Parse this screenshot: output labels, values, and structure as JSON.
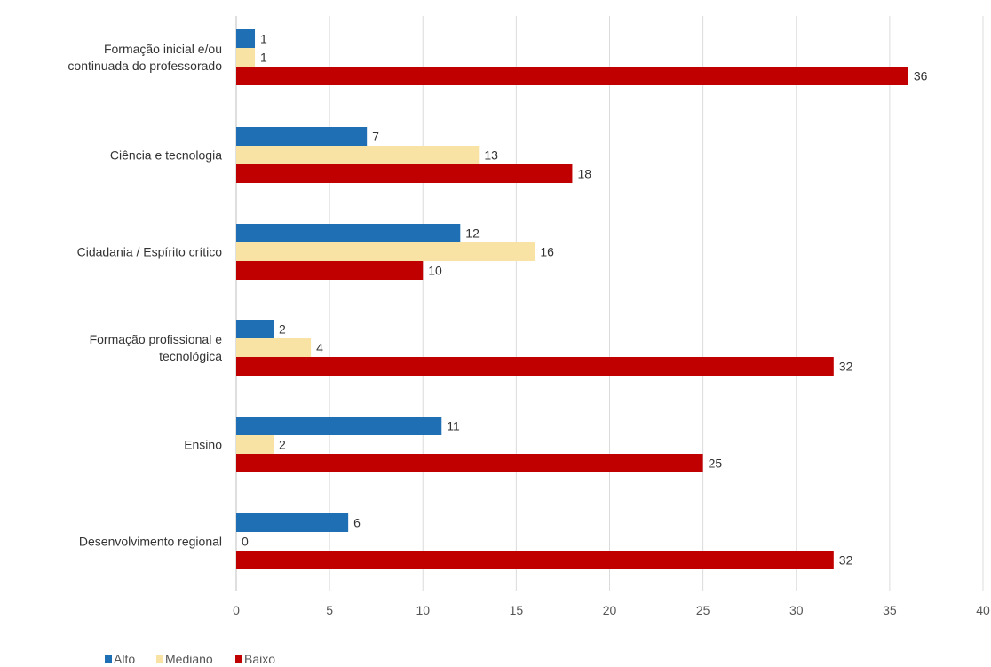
{
  "chart_data": {
    "type": "bar",
    "orientation": "horizontal",
    "categories": [
      [
        "Formação inicial e/ou",
        "continuada do professorado"
      ],
      [
        "Ciência e tecnologia"
      ],
      [
        "Cidadania / Espírito crítico"
      ],
      [
        "Formação profissional e",
        "tecnológica"
      ],
      [
        "Ensino"
      ],
      [
        "Desenvolvimento regional"
      ]
    ],
    "series": [
      {
        "name": "Alto",
        "color": "#1f6fb5",
        "values": [
          1,
          7,
          12,
          2,
          11,
          6
        ]
      },
      {
        "name": "Mediano",
        "color": "#f8e3a5",
        "values": [
          1,
          13,
          16,
          4,
          2,
          0
        ]
      },
      {
        "name": "Baixo",
        "color": "#c00000",
        "values": [
          36,
          18,
          10,
          32,
          25,
          32
        ]
      }
    ],
    "xlim": [
      0,
      40
    ],
    "xticks": [
      0,
      5,
      10,
      15,
      20,
      25,
      30,
      35,
      40
    ],
    "grid": true,
    "legend": "bottom-left",
    "title": "",
    "xlabel": "",
    "ylabel": ""
  }
}
